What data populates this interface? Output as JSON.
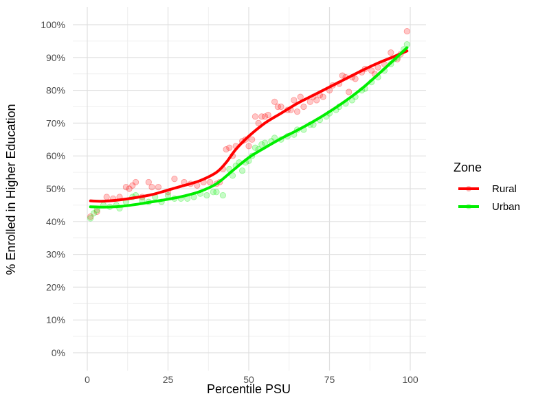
{
  "chart_data": {
    "type": "scatter",
    "title": "",
    "xlabel": "Percentile PSU",
    "ylabel": "% Enrolled in Higher Education",
    "xlim": [
      0,
      100
    ],
    "ylim": [
      0,
      100
    ],
    "x_ticks": [
      0,
      25,
      50,
      75,
      100
    ],
    "x_tick_labels": [
      "0",
      "25",
      "50",
      "75",
      "100"
    ],
    "y_ticks": [
      0,
      10,
      20,
      30,
      40,
      50,
      60,
      70,
      80,
      90,
      100
    ],
    "y_tick_labels": [
      "0%",
      "10%",
      "20%",
      "30%",
      "40%",
      "50%",
      "60%",
      "70%",
      "80%",
      "90%",
      "100%"
    ],
    "grid": true,
    "legend": {
      "title": "Zone",
      "position": "right"
    },
    "series": [
      {
        "name": "Rural",
        "color": "#ff0000",
        "points": [
          [
            1,
            41.5
          ],
          [
            3,
            43
          ],
          [
            6,
            47.5
          ],
          [
            8,
            47
          ],
          [
            10,
            47.5
          ],
          [
            12,
            50.5
          ],
          [
            13,
            50
          ],
          [
            14,
            51
          ],
          [
            15,
            52
          ],
          [
            17,
            47.5
          ],
          [
            19,
            52
          ],
          [
            20,
            50.5
          ],
          [
            22,
            50.5
          ],
          [
            25,
            49
          ],
          [
            27,
            53
          ],
          [
            30,
            52
          ],
          [
            32,
            51.5
          ],
          [
            34,
            51
          ],
          [
            36,
            52
          ],
          [
            38,
            52
          ],
          [
            40,
            51.5
          ],
          [
            41,
            52
          ],
          [
            42,
            56
          ],
          [
            43,
            62
          ],
          [
            44,
            62.5
          ],
          [
            45,
            60
          ],
          [
            46,
            63
          ],
          [
            48,
            64.5
          ],
          [
            49,
            65
          ],
          [
            50,
            63
          ],
          [
            51,
            65
          ],
          [
            52,
            72
          ],
          [
            53,
            70
          ],
          [
            54,
            72
          ],
          [
            55,
            72
          ],
          [
            56,
            72.5
          ],
          [
            58,
            76.5
          ],
          [
            59,
            75
          ],
          [
            60,
            75
          ],
          [
            62,
            74
          ],
          [
            63,
            74
          ],
          [
            64,
            77
          ],
          [
            65,
            73.5
          ],
          [
            66,
            78
          ],
          [
            67,
            75
          ],
          [
            69,
            76.5
          ],
          [
            70,
            78
          ],
          [
            71,
            77
          ],
          [
            72,
            78.5
          ],
          [
            73,
            78
          ],
          [
            75,
            80
          ],
          [
            76,
            81.5
          ],
          [
            78,
            82
          ],
          [
            79,
            84.5
          ],
          [
            80,
            84
          ],
          [
            81,
            79.5
          ],
          [
            82,
            84
          ],
          [
            83,
            83.5
          ],
          [
            85,
            85.5
          ],
          [
            86,
            86.5
          ],
          [
            88,
            86
          ],
          [
            89,
            85
          ],
          [
            90,
            87
          ],
          [
            92,
            88
          ],
          [
            94,
            91.5
          ],
          [
            96,
            89.5
          ],
          [
            97,
            91
          ],
          [
            99,
            98
          ]
        ],
        "smooth": [
          [
            1,
            46.3
          ],
          [
            5,
            46.2
          ],
          [
            10,
            46.6
          ],
          [
            15,
            47.3
          ],
          [
            20,
            48.2
          ],
          [
            25,
            49.6
          ],
          [
            30,
            51.0
          ],
          [
            35,
            52.5
          ],
          [
            40,
            55.0
          ],
          [
            43,
            58.0
          ],
          [
            46,
            62.0
          ],
          [
            50,
            66.0
          ],
          [
            55,
            70.0
          ],
          [
            60,
            73.0
          ],
          [
            65,
            76.0
          ],
          [
            70,
            78.5
          ],
          [
            75,
            81.0
          ],
          [
            80,
            83.5
          ],
          [
            85,
            86.0
          ],
          [
            90,
            88.3
          ],
          [
            95,
            90.3
          ],
          [
            99,
            92.0
          ]
        ]
      },
      {
        "name": "Urban",
        "color": "#00ee00",
        "points": [
          [
            1,
            41
          ],
          [
            2,
            42.5
          ],
          [
            3,
            43.5
          ],
          [
            5,
            45
          ],
          [
            7,
            44.5
          ],
          [
            9,
            45
          ],
          [
            10,
            44
          ],
          [
            12,
            46
          ],
          [
            14,
            47.5
          ],
          [
            15,
            48
          ],
          [
            17,
            46.5
          ],
          [
            19,
            46
          ],
          [
            21,
            47.5
          ],
          [
            23,
            46
          ],
          [
            25,
            48
          ],
          [
            27,
            47
          ],
          [
            29,
            47
          ],
          [
            31,
            47
          ],
          [
            33,
            47.5
          ],
          [
            35,
            48.5
          ],
          [
            37,
            48
          ],
          [
            39,
            49
          ],
          [
            40,
            49
          ],
          [
            42,
            48
          ],
          [
            44,
            56
          ],
          [
            45,
            54
          ],
          [
            46,
            57
          ],
          [
            47,
            58
          ],
          [
            48,
            55.5
          ],
          [
            49,
            58
          ],
          [
            50,
            58.5
          ],
          [
            51,
            60
          ],
          [
            52,
            62.5
          ],
          [
            53,
            62
          ],
          [
            54,
            63.5
          ],
          [
            55,
            64
          ],
          [
            57,
            64.5
          ],
          [
            58,
            65.5
          ],
          [
            60,
            65
          ],
          [
            62,
            66
          ],
          [
            64,
            66.5
          ],
          [
            65,
            68
          ],
          [
            67,
            68
          ],
          [
            69,
            69.5
          ],
          [
            70,
            69.5
          ],
          [
            72,
            71
          ],
          [
            74,
            72
          ],
          [
            75,
            73
          ],
          [
            77,
            74
          ],
          [
            78,
            75
          ],
          [
            80,
            76
          ],
          [
            82,
            77
          ],
          [
            83,
            78
          ],
          [
            85,
            80
          ],
          [
            86,
            80.5
          ],
          [
            88,
            82.5
          ],
          [
            90,
            84
          ],
          [
            92,
            86
          ],
          [
            94,
            88
          ],
          [
            95,
            89.5
          ],
          [
            96,
            90
          ],
          [
            98,
            92.5
          ],
          [
            99,
            94
          ]
        ],
        "smooth": [
          [
            1,
            44.5
          ],
          [
            5,
            44.4
          ],
          [
            10,
            44.6
          ],
          [
            15,
            45.2
          ],
          [
            20,
            46.0
          ],
          [
            25,
            46.8
          ],
          [
            30,
            47.8
          ],
          [
            35,
            49.2
          ],
          [
            40,
            51.5
          ],
          [
            45,
            55.5
          ],
          [
            50,
            59.5
          ],
          [
            55,
            62.5
          ],
          [
            60,
            65.3
          ],
          [
            65,
            67.8
          ],
          [
            70,
            70.5
          ],
          [
            75,
            73.5
          ],
          [
            80,
            76.8
          ],
          [
            85,
            80.5
          ],
          [
            90,
            84.8
          ],
          [
            95,
            89.3
          ],
          [
            99,
            93.0
          ]
        ]
      }
    ]
  }
}
